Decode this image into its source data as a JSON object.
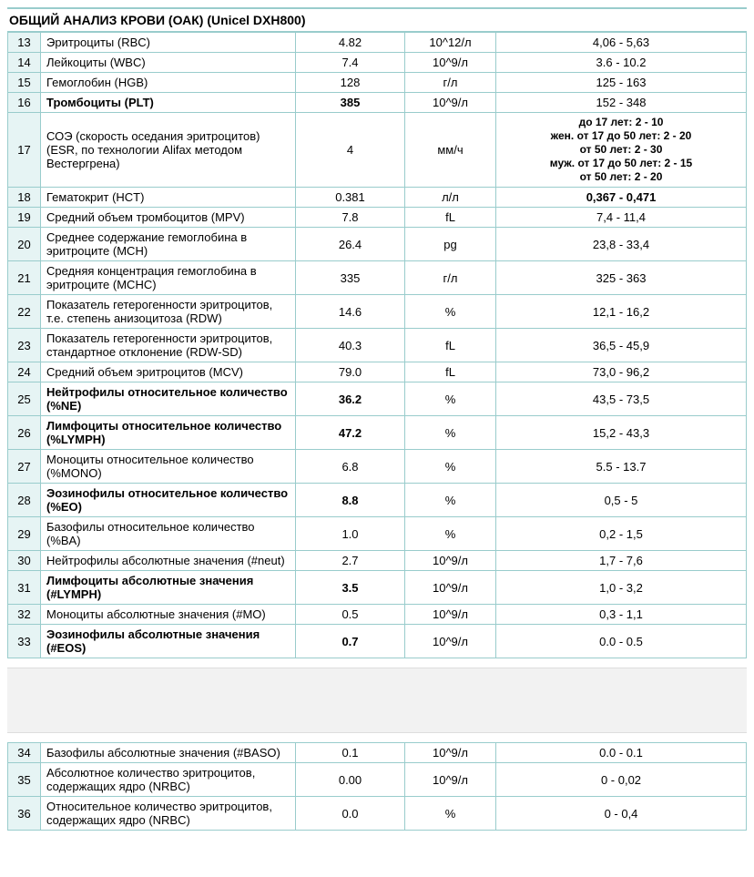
{
  "title": "ОБЩИЙ АНАЛИЗ КРОВИ (ОАК) (Unicel DXH800)",
  "rows1": [
    {
      "n": "13",
      "name": "Эритроциты (RBC)",
      "val": "4.82",
      "unit": "10^12/л",
      "ref": "4,06 - 5,63",
      "bold": false,
      "bref": false
    },
    {
      "n": "14",
      "name": "Лейкоциты (WBC)",
      "val": "7.4",
      "unit": "10^9/л",
      "ref": "3.6 - 10.2",
      "bold": false,
      "bref": false
    },
    {
      "n": "15",
      "name": "Гемоглобин (HGB)",
      "val": "128",
      "unit": "г/л",
      "ref": "125 - 163",
      "bold": false,
      "bref": false
    },
    {
      "n": "16",
      "name": "Тромбоциты (PLT)",
      "val": "385",
      "unit": "10^9/л",
      "ref": "152 - 348",
      "bold": true,
      "bref": false
    },
    {
      "n": "17",
      "name": "СОЭ (скорость оседания эритроцитов) (ESR, по технологии Alifax методом Вестергрена)",
      "val": "4",
      "unit": "мм/ч",
      "ref_multi": [
        "до 17 лет: 2 - 10",
        "жен. от 17 до 50 лет: 2 - 20",
        "от 50 лет: 2 - 30",
        "муж. от 17 до 50 лет: 2 - 15",
        "от 50 лет: 2 - 20"
      ],
      "bold": false,
      "bref": true
    },
    {
      "n": "18",
      "name": "Гематокрит (HCT)",
      "val": "0.381",
      "unit": "л/л",
      "ref": "0,367 - 0,471",
      "bold": false,
      "bref": true
    },
    {
      "n": "19",
      "name": "Средний объем тромбоцитов (MPV)",
      "val": "7.8",
      "unit": "fL",
      "ref": "7,4 - 11,4",
      "bold": false,
      "bref": false
    },
    {
      "n": "20",
      "name": "Среднее содержание гемоглобина в эритроците (MCH)",
      "val": "26.4",
      "unit": "pg",
      "ref": "23,8 - 33,4",
      "bold": false,
      "bref": false
    },
    {
      "n": "21",
      "name": "Средняя концентрация гемоглобина в эритроците (MCHC)",
      "val": "335",
      "unit": "г/л",
      "ref": "325 - 363",
      "bold": false,
      "bref": false
    },
    {
      "n": "22",
      "name": "Показатель гетерогенности эритроцитов, т.е. степень анизоцитоза (RDW)",
      "val": "14.6",
      "unit": "%",
      "ref": "12,1 - 16,2",
      "bold": false,
      "bref": false
    },
    {
      "n": "23",
      "name": "Показатель гетерогенности эритроцитов, стандартное отклонение (RDW-SD)",
      "val": "40.3",
      "unit": "fL",
      "ref": "36,5 - 45,9",
      "bold": false,
      "bref": false
    },
    {
      "n": "24",
      "name": "Средний объем эритроцитов (MCV)",
      "val": "79.0",
      "unit": "fL",
      "ref": "73,0 - 96,2",
      "bold": false,
      "bref": false
    },
    {
      "n": "25",
      "name": "Нейтрофилы относительное количество (%NE)",
      "val": "36.2",
      "unit": "%",
      "ref": "43,5 - 73,5",
      "bold": true,
      "bref": false
    },
    {
      "n": "26",
      "name": "Лимфоциты относительное количество (%LYMPH)",
      "val": "47.2",
      "unit": "%",
      "ref": "15,2 - 43,3",
      "bold": true,
      "bref": false
    },
    {
      "n": "27",
      "name": "Моноциты относительное количество (%MONO)",
      "val": "6.8",
      "unit": "%",
      "ref": "5.5 - 13.7",
      "bold": false,
      "bref": false
    },
    {
      "n": "28",
      "name": "Эозинофилы относительное количество (%EO)",
      "val": "8.8",
      "unit": "%",
      "ref": "0,5 - 5",
      "bold": true,
      "bref": false
    },
    {
      "n": "29",
      "name": "Базофилы относительное количество (%BA)",
      "val": "1.0",
      "unit": "%",
      "ref": "0,2 - 1,5",
      "bold": false,
      "bref": false
    },
    {
      "n": "30",
      "name": "Нейтрофилы абсолютные значения (#neut)",
      "val": "2.7",
      "unit": "10^9/л",
      "ref": "1,7 - 7,6",
      "bold": false,
      "bref": false
    },
    {
      "n": "31",
      "name": "Лимфоциты абсолютные значения (#LYMPH)",
      "val": "3.5",
      "unit": "10^9/л",
      "ref": "1,0 - 3,2",
      "bold": true,
      "bref": false
    },
    {
      "n": "32",
      "name": "Моноциты абсолютные значения (#MO)",
      "val": "0.5",
      "unit": "10^9/л",
      "ref": "0,3 - 1,1",
      "bold": false,
      "bref": false
    },
    {
      "n": "33",
      "name": "Эозинофилы абсолютные значения (#EOS)",
      "val": "0.7",
      "unit": "10^9/л",
      "ref": "0.0 - 0.5",
      "bold": true,
      "bref": false
    }
  ],
  "rows2": [
    {
      "n": "34",
      "name": "Базофилы абсолютные значения (#BASO)",
      "val": "0.1",
      "unit": "10^9/л",
      "ref": "0.0 - 0.1",
      "bold": false,
      "bref": false
    },
    {
      "n": "35",
      "name": "Абсолютное количество эритроцитов, содержащих ядро (NRBC)",
      "val": "0.00",
      "unit": "10^9/л",
      "ref": "0 - 0,02",
      "bold": false,
      "bref": false
    },
    {
      "n": "36",
      "name": "Относительное количество эритроцитов, содержащих ядро (NRBC)",
      "val": "0.0",
      "unit": "%",
      "ref": "0 - 0,4",
      "bold": false,
      "bref": false
    }
  ]
}
